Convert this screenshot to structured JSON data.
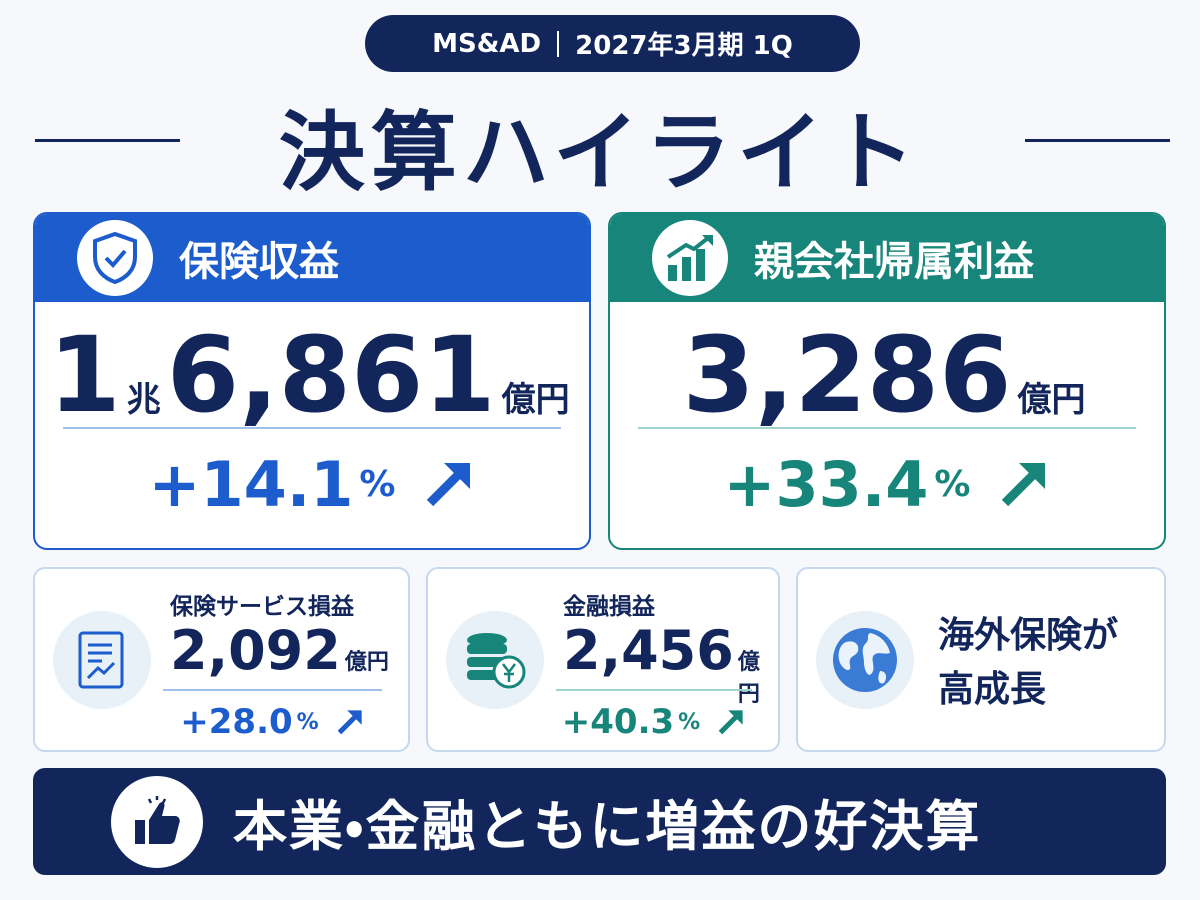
{
  "header": {
    "company": "MS&AD",
    "period": "2027年3月期 1Q",
    "title": "決算ハイライト"
  },
  "main_cards": [
    {
      "title": "保険収益",
      "value_parts": [
        {
          "text": "1",
          "size": "big"
        },
        {
          "text": "兆",
          "size": "unit"
        },
        {
          "text": "6,861",
          "size": "big"
        },
        {
          "text": "億円",
          "size": "unit"
        }
      ],
      "change": "+14.1",
      "change_unit": "%"
    },
    {
      "title": "親会社帰属利益",
      "value_parts": [
        {
          "text": "3,286",
          "size": "big"
        },
        {
          "text": "億円",
          "size": "unit"
        }
      ],
      "change": "+33.4",
      "change_unit": "%"
    }
  ],
  "sub_cards": [
    {
      "title": "保険サービス損益",
      "value": "2,092",
      "unit": "億円",
      "change": "+28.0",
      "change_unit": "%"
    },
    {
      "title": "金融損益",
      "value": "2,456",
      "unit": "億円",
      "change": "+40.3",
      "change_unit": "%"
    },
    {
      "lines": [
        "海外保険が",
        "高成長"
      ]
    }
  ],
  "banner": {
    "text": "本業・金融ともに増益の好決算"
  }
}
